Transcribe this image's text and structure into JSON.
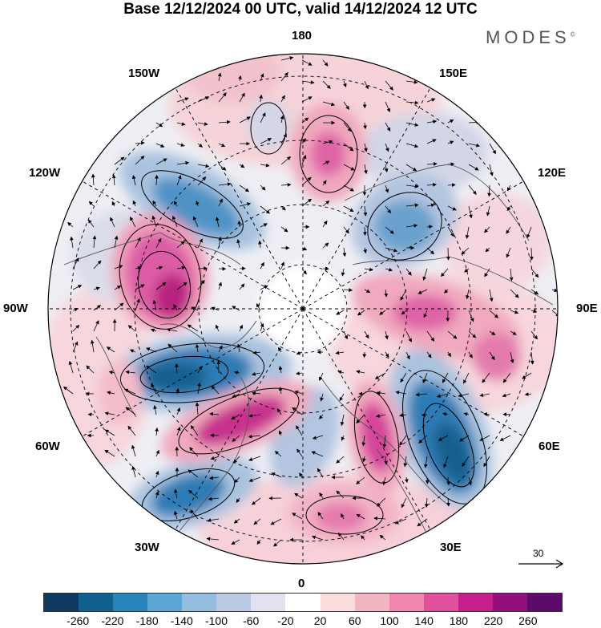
{
  "title": "Base 12/12/2024 00 UTC, valid 14/12/2024 12 UTC",
  "brand": "MODES",
  "brand_mark": "©",
  "longitude_labels": {
    "top": "180",
    "top_left": "150W",
    "top_right": "150E",
    "upper_left": "120W",
    "upper_right": "120E",
    "left": "90W",
    "right": "90E",
    "lower_left": "60W",
    "lower_right": "60E",
    "bottom_left": "30W",
    "bottom_right": "30E",
    "bottom": "0"
  },
  "reference_vector": {
    "value": "30"
  },
  "colorbar": {
    "colors": [
      "#0d3a5e",
      "#12608e",
      "#2a85bd",
      "#5ca6d3",
      "#93bedf",
      "#bcc9e4",
      "#e1e1ef",
      "#ffffff",
      "#fbdcdc",
      "#f4b5c3",
      "#ee86ad",
      "#e0519d",
      "#c41f8b",
      "#93107c",
      "#5c0b6a"
    ],
    "labels": [
      "-260",
      "-220",
      "-180",
      "-140",
      "-100",
      "-60",
      "-20",
      "20",
      "60",
      "100",
      "140",
      "180",
      "220",
      "260"
    ]
  },
  "icons": {
    "reference_arrow": "arrow-right-icon",
    "map": "polar-stereographic-map"
  }
}
